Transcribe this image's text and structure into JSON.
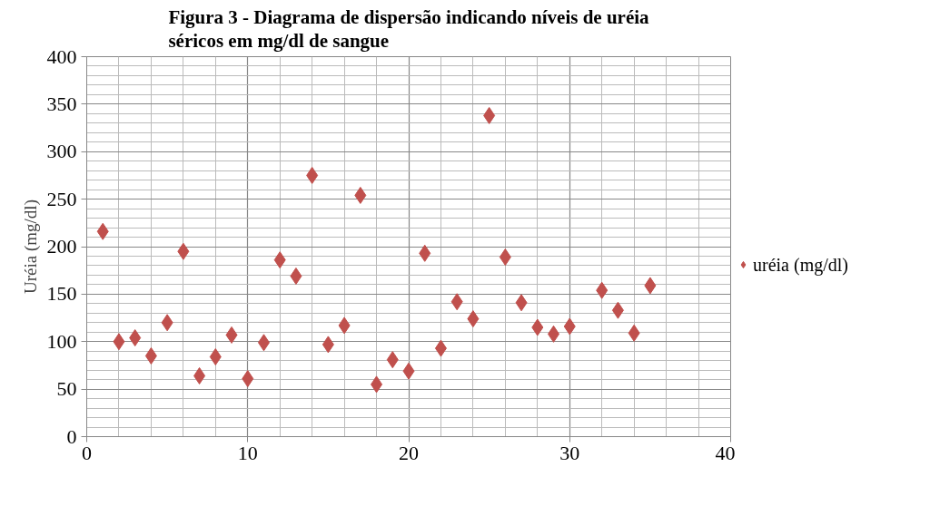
{
  "chart_data": {
    "type": "scatter",
    "title": "Figura 3 - Diagrama de dispersão indicando níveis de uréia séricos em mg/dl de sangue",
    "ylabel": "Uréia (mg/dl)",
    "series": [
      {
        "name": "uréia (mg/dl)",
        "color": "#c0504d",
        "x": [
          1,
          2,
          3,
          4,
          5,
          6,
          7,
          8,
          9,
          10,
          11,
          12,
          13,
          14,
          15,
          16,
          17,
          18,
          19,
          20,
          21,
          22,
          23,
          24,
          25,
          26,
          27,
          28,
          29,
          30,
          32,
          33,
          34,
          35
        ],
        "values": [
          216,
          100,
          104,
          85,
          120,
          195,
          64,
          84,
          107,
          61,
          99,
          186,
          169,
          275,
          97,
          117,
          254,
          55,
          81,
          69,
          193,
          93,
          142,
          124,
          338,
          189,
          141,
          115,
          108,
          116,
          154,
          133,
          109,
          159
        ]
      }
    ],
    "xlim": [
      0,
      40
    ],
    "xticks": [
      0,
      10,
      20,
      30,
      40
    ],
    "ylim": [
      0,
      400
    ],
    "yticks": [
      0,
      50,
      100,
      150,
      200,
      250,
      300,
      350,
      400
    ],
    "grid": true,
    "legend": "right",
    "marker": "diamond"
  }
}
